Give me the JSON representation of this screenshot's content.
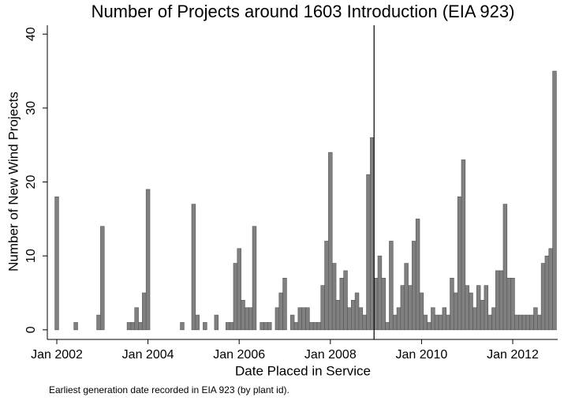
{
  "chart_data": {
    "type": "bar",
    "title": "Number of Projects around 1603 Introduction (EIA 923)",
    "x_label": "Date Placed in Service",
    "y_label": "Number of New Wind Projects",
    "note": "Earliest generation date recorded in EIA 923 (by plant id).",
    "color": "#808080",
    "categories": [
      "Jan 2002",
      null,
      null,
      null,
      null,
      null,
      null,
      null,
      null,
      null,
      null,
      null,
      null,
      null,
      null,
      null,
      null,
      null,
      null,
      null,
      null,
      null,
      null,
      null,
      "Jan 2004",
      null,
      null,
      null,
      null,
      null,
      null,
      null,
      null,
      null,
      null,
      null,
      null,
      null,
      null,
      null,
      null,
      null,
      null,
      null,
      null,
      null,
      null,
      null,
      "Jan 2006",
      null,
      null,
      null,
      null,
      null,
      null,
      null,
      null,
      null,
      null,
      null,
      null,
      null,
      null,
      null,
      null,
      null,
      null,
      null,
      null,
      null,
      null,
      null,
      "Jan 2008",
      null,
      null,
      null,
      null,
      null,
      null,
      null,
      null,
      null,
      null,
      null,
      null,
      null,
      null,
      null,
      null,
      null,
      null,
      null,
      null,
      null,
      null,
      null,
      "Jan 2010",
      null,
      null,
      null,
      null,
      null,
      null,
      null,
      null,
      null,
      null,
      null,
      null,
      null,
      null,
      null,
      null,
      null,
      null,
      null,
      null,
      null,
      null,
      null,
      "Jan 2012",
      null,
      null,
      null,
      null,
      null,
      null,
      null,
      null,
      null,
      null,
      null
    ],
    "values": [
      18,
      0,
      0,
      0,
      0,
      1,
      0,
      0,
      0,
      0,
      0,
      2,
      14,
      0,
      0,
      0,
      0,
      0,
      0,
      1,
      1,
      3,
      1,
      5,
      19,
      0,
      0,
      0,
      0,
      0,
      0,
      0,
      0,
      1,
      0,
      0,
      17,
      2,
      0,
      1,
      0,
      0,
      2,
      0,
      0,
      1,
      1,
      9,
      11,
      4,
      3,
      3,
      14,
      0,
      1,
      1,
      1,
      0,
      3,
      5,
      7,
      0,
      2,
      1,
      3,
      3,
      3,
      1,
      1,
      1,
      6,
      12,
      24,
      9,
      4,
      7,
      8,
      3,
      4,
      5,
      3,
      2,
      21,
      26,
      7,
      10,
      7,
      1,
      12,
      2,
      3,
      6,
      9,
      6,
      12,
      15,
      5,
      2,
      1,
      3,
      2,
      2,
      3,
      2,
      7,
      5,
      18,
      23,
      6,
      5,
      3,
      6,
      4,
      6,
      2,
      3,
      8,
      8,
      17,
      7,
      7,
      2,
      2,
      2,
      2,
      2,
      3,
      2,
      9,
      10,
      11,
      35
    ],
    "vline": 83.5,
    "ylim": [
      -1.3,
      41.2
    ],
    "yticks": [
      0,
      10,
      20,
      30,
      40
    ],
    "grid": false
  }
}
